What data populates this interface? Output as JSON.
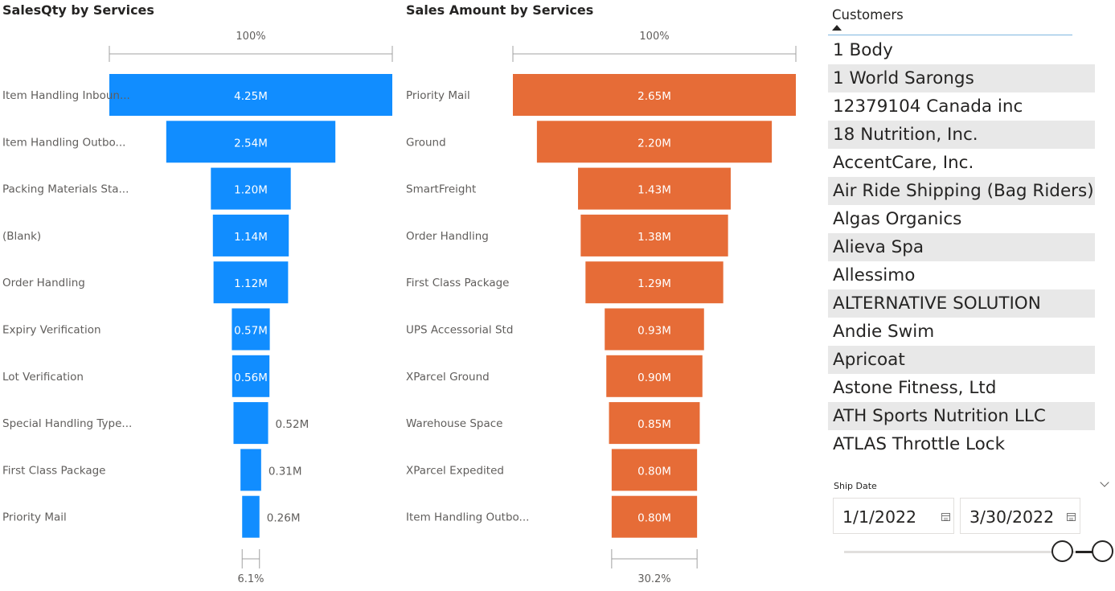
{
  "colors": {
    "qty_bar": "#118dff",
    "amount_bar": "#e66c37"
  },
  "chart_data": [
    {
      "type": "funnel",
      "title": "SalesQty by Services",
      "top_percent": "100%",
      "bottom_percent": "6.1%",
      "categories": [
        "Item Handling Inboun...",
        "Item Handling Outbo...",
        "Packing Materials Sta...",
        "(Blank)",
        "Order Handling",
        "Expiry Verification",
        "Lot Verification",
        "Special Handling Type...",
        "First Class Package",
        "Priority Mail"
      ],
      "values": [
        4.25,
        2.54,
        1.2,
        1.14,
        1.12,
        0.57,
        0.56,
        0.52,
        0.31,
        0.26
      ],
      "value_labels": [
        "4.25M",
        "2.54M",
        "1.20M",
        "1.14M",
        "1.12M",
        "0.57M",
        "0.56M",
        "0.52M",
        "0.31M",
        "0.26M"
      ]
    },
    {
      "type": "funnel",
      "title": "Sales Amount by Services",
      "top_percent": "100%",
      "bottom_percent": "30.2%",
      "categories": [
        "Priority Mail",
        "Ground",
        "SmartFreight",
        "Order Handling",
        "First Class Package",
        "UPS Accessorial Std",
        "XParcel Ground",
        "Warehouse Space",
        "XParcel Expedited",
        "Item Handling Outbo..."
      ],
      "values": [
        2.65,
        2.2,
        1.43,
        1.38,
        1.29,
        0.93,
        0.9,
        0.85,
        0.8,
        0.8
      ],
      "value_labels": [
        "2.65M",
        "2.20M",
        "1.43M",
        "1.38M",
        "1.29M",
        "0.93M",
        "0.90M",
        "0.85M",
        "0.80M",
        "0.80M"
      ]
    }
  ],
  "slicer": {
    "header": "Customers",
    "items": [
      "1 Body",
      "1 World Sarongs",
      "12379104 Canada inc",
      "18 Nutrition, Inc.",
      "AccentCare, Inc.",
      "Air Ride Shipping (Bag Riders)",
      "Algas Organics",
      "Alieva Spa",
      "Allessimo",
      "ALTERNATIVE SOLUTION",
      "Andie Swim",
      "Apricoat",
      "Astone Fitness, Ltd",
      "ATH Sports Nutrition LLC",
      "ATLAS Throttle Lock"
    ]
  },
  "date_filter": {
    "label": "Ship Date",
    "start": "1/1/2022",
    "end": "3/30/2022",
    "calendar_icon": "calendar-icon",
    "expand_icon": "chevron-down-icon"
  }
}
